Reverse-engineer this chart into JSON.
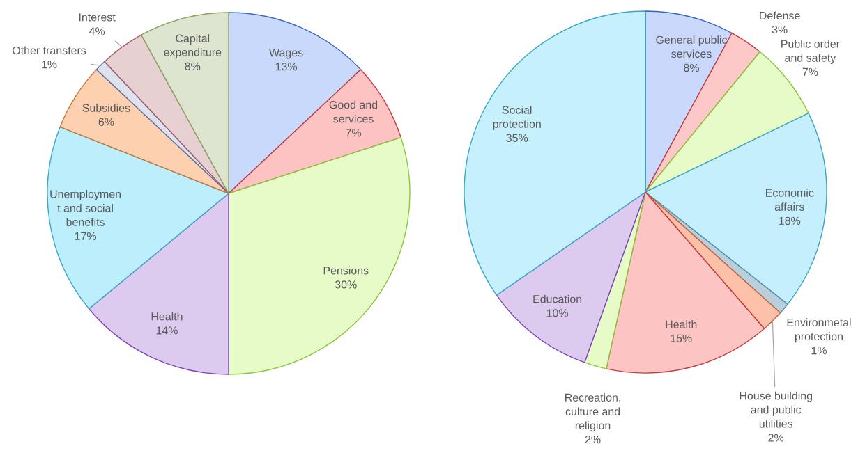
{
  "chart_data": [
    {
      "type": "pie",
      "categories": [
        "Wages",
        "Good and\nservices",
        "Pensions",
        "Health",
        "Unemploymen\nt and social\nbenefits",
        "Subsidies",
        "Other transfers",
        "Interest",
        "Capital\nexpenditure"
      ],
      "values": [
        13,
        7,
        30,
        14,
        17,
        6,
        1,
        4,
        8
      ],
      "value_labels": [
        "13%",
        "7%",
        "30%",
        "14%",
        "17%",
        "6%",
        "1%",
        "4%",
        "8%"
      ],
      "colors": [
        "#c9d9fb",
        "#fdc2c2",
        "#e6fbc8",
        "#dccbee",
        "#bdeefc",
        "#fdd1b0",
        "#dde2ee",
        "#e6d0d2",
        "#dde5d0"
      ]
    },
    {
      "type": "pie",
      "categories": [
        "General public\nservices",
        "Defense",
        "Public order\nand safety",
        "Economic\naffairs",
        "Environmetal\nprotection",
        "House building\nand public\nutilities",
        "Health",
        "Recreation,\nculture and\nreligion",
        "Education",
        "Social\nprotection"
      ],
      "values": [
        8,
        3,
        7,
        18,
        1,
        2,
        15,
        2,
        10,
        35
      ],
      "value_labels": [
        "8%",
        "3%",
        "7%",
        "18%",
        "1%",
        "2%",
        "15%",
        "2%",
        "10%",
        "35%"
      ],
      "colors": [
        "#cad9fb",
        "#fdc8c8",
        "#e6fbc8",
        "#c5effc",
        "#b9cfdb",
        "#fdc0a8",
        "#fdc4c4",
        "#e6fbc8",
        "#dccbee",
        "#c5f0fc"
      ]
    }
  ]
}
